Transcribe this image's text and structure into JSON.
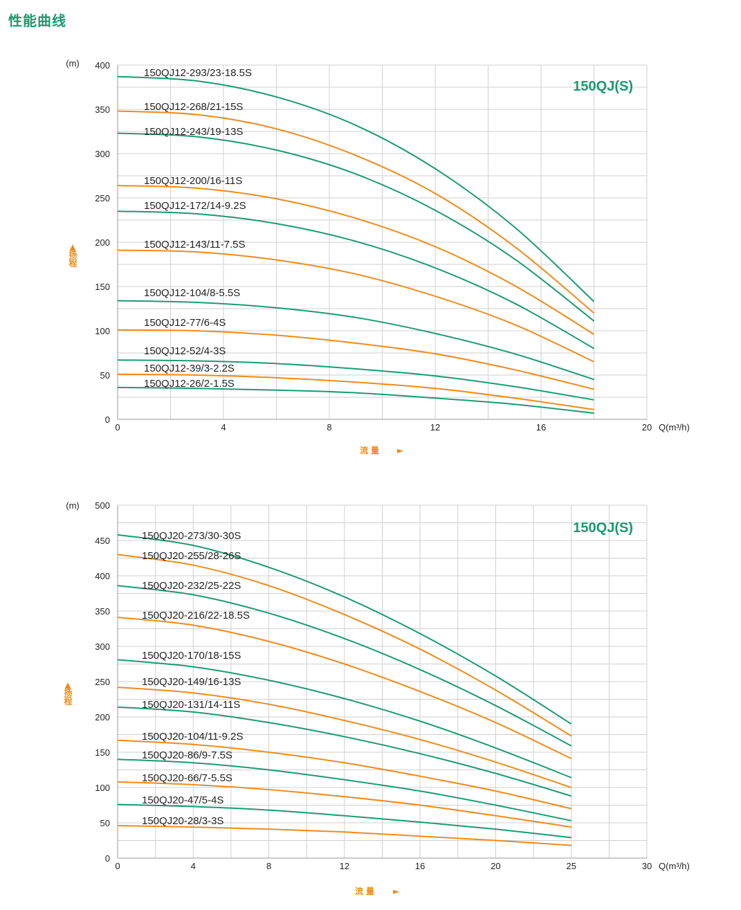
{
  "title": "性能曲线",
  "colors": {
    "green": "#1a9a73",
    "orange": "#f28a1a",
    "title": "#1a9a6c",
    "grid": "#cfcfcf",
    "axis_label": "#f08a1c"
  },
  "chart_data": [
    {
      "type": "line",
      "model_label": "150QJ(S)",
      "y_unit": "(m)",
      "ylabel": "扬程",
      "xlabel": "流量",
      "x_unit": "Q(m³/h)",
      "xlim": [
        0,
        20
      ],
      "ylim": [
        0,
        400
      ],
      "x_ticks": [
        "0",
        "4",
        "8",
        "12",
        "16",
        "20"
      ],
      "y_ticks": [
        "0",
        "50",
        "100",
        "150",
        "200",
        "250",
        "300",
        "350",
        "400"
      ],
      "grid": true,
      "x": [
        0,
        3,
        6,
        9,
        12,
        15,
        18
      ],
      "series": [
        {
          "name": "150QJ12-293/23-18.5S",
          "color": "green",
          "values": [
            387,
            382,
            364,
            332,
            283,
            217,
            133
          ]
        },
        {
          "name": "150QJ12-268/21-15S",
          "color": "orange",
          "values": [
            348,
            344,
            328,
            298,
            255,
            195,
            120
          ]
        },
        {
          "name": "150QJ12-243/19-13S",
          "color": "green",
          "values": [
            323,
            319,
            304,
            277,
            236,
            181,
            111
          ]
        },
        {
          "name": "150QJ12-200/16-11S",
          "color": "orange",
          "values": [
            264,
            261,
            249,
            227,
            195,
            151,
            96
          ]
        },
        {
          "name": "150QJ12-172/14-9.2S",
          "color": "green",
          "values": [
            235,
            232,
            221,
            201,
            171,
            131,
            80
          ]
        },
        {
          "name": "150QJ12-143/11-7.5S",
          "color": "orange",
          "values": [
            191,
            189,
            180,
            164,
            139,
            107,
            65
          ]
        },
        {
          "name": "150QJ12-104/8-5.5S",
          "color": "green",
          "values": [
            134,
            132,
            126,
            115,
            97,
            74,
            45
          ]
        },
        {
          "name": "150QJ12-77/6-4S",
          "color": "orange",
          "values": [
            101,
            100,
            95,
            86,
            74,
            56,
            34
          ]
        },
        {
          "name": "150QJ12-52/4-3S",
          "color": "green",
          "values": [
            67,
            66,
            63,
            57,
            49,
            37,
            22
          ]
        },
        {
          "name": "150QJ12-39/3-2.2S",
          "color": "orange",
          "values": [
            51,
            50,
            47,
            42,
            35,
            24,
            11
          ]
        },
        {
          "name": "150QJ12-26/2-1.5S",
          "color": "green",
          "values": [
            36,
            35,
            33,
            30,
            24,
            17,
            7
          ]
        }
      ]
    },
    {
      "type": "line",
      "model_label": "150QJ(S)",
      "y_unit": "(m)",
      "ylabel": "扬程",
      "xlabel": "流量",
      "x_unit": "Q(m³/h)",
      "xlim": [
        0,
        30
      ],
      "ylim": [
        0,
        500
      ],
      "x_ticks": [
        "0",
        "4",
        "8",
        "12",
        "16",
        "20",
        "25",
        "30"
      ],
      "y_ticks": [
        "0",
        "50",
        "100",
        "150",
        "200",
        "250",
        "300",
        "350",
        "400",
        "450",
        "500"
      ],
      "grid": true,
      "x": [
        0,
        4,
        8,
        12,
        16,
        20,
        25
      ],
      "series": [
        {
          "name": "150QJ20-273/30-30S",
          "color": "green",
          "values": [
            458,
            443,
            412,
            370,
            318,
            258,
            190
          ]
        },
        {
          "name": "150QJ20-255/28-26S",
          "color": "orange",
          "values": [
            430,
            415,
            386,
            345,
            296,
            238,
            173
          ]
        },
        {
          "name": "150QJ20-232/25-22S",
          "color": "green",
          "values": [
            386,
            373,
            347,
            311,
            267,
            216,
            159
          ]
        },
        {
          "name": "150QJ20-216/22-18.5S",
          "color": "orange",
          "values": [
            341,
            330,
            307,
            275,
            236,
            192,
            141
          ]
        },
        {
          "name": "150QJ20-170/18-15S",
          "color": "green",
          "values": [
            281,
            271,
            252,
            226,
            194,
            156,
            114
          ]
        },
        {
          "name": "150QJ20-149/16-13S",
          "color": "orange",
          "values": [
            242,
            234,
            218,
            195,
            168,
            136,
            100
          ]
        },
        {
          "name": "150QJ20-131/14-11S",
          "color": "green",
          "values": [
            214,
            207,
            192,
            172,
            148,
            120,
            88
          ]
        },
        {
          "name": "150QJ20-104/11-9.2S",
          "color": "orange",
          "values": [
            167,
            161,
            150,
            135,
            116,
            95,
            70
          ]
        },
        {
          "name": "150QJ20-86/9-7.5S",
          "color": "green",
          "values": [
            140,
            135,
            125,
            111,
            95,
            75,
            53
          ]
        },
        {
          "name": "150QJ20-66/7-5.5S",
          "color": "orange",
          "values": [
            108,
            104,
            97,
            87,
            75,
            60,
            44
          ]
        },
        {
          "name": "150QJ20-47/5-4S",
          "color": "green",
          "values": [
            76,
            73,
            68,
            60,
            51,
            41,
            29
          ]
        },
        {
          "name": "150QJ20-28/3-3S",
          "color": "orange",
          "values": [
            46,
            44,
            41,
            37,
            31,
            25,
            18
          ]
        }
      ]
    }
  ]
}
